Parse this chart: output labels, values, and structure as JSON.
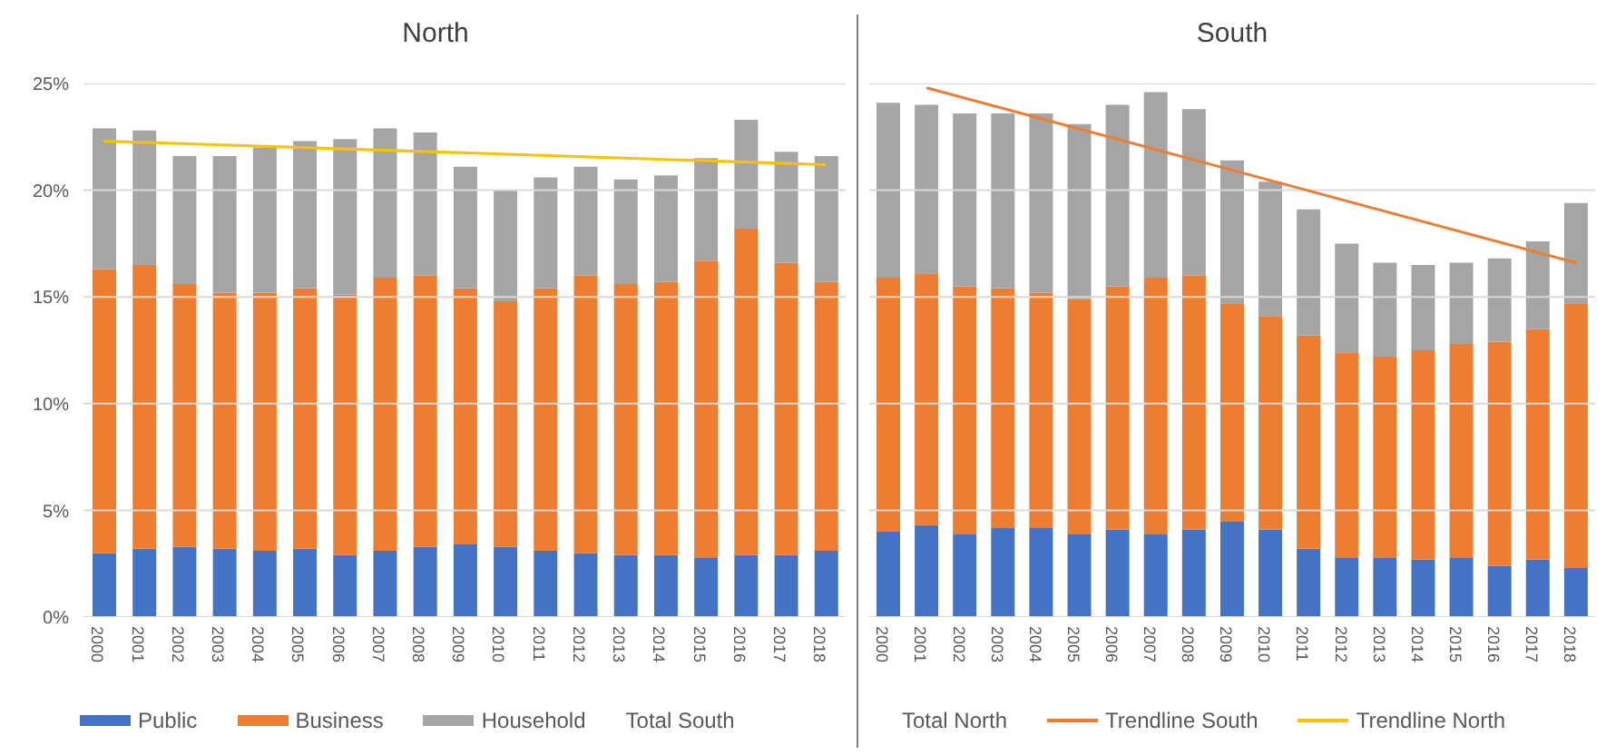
{
  "chart_data": [
    {
      "type": "bar",
      "title": "North",
      "stacked": true,
      "categories": [
        "2000",
        "2001",
        "2002",
        "2003",
        "2004",
        "2005",
        "2006",
        "2007",
        "2008",
        "2009",
        "2010",
        "2011",
        "2012",
        "2013",
        "2014",
        "2015",
        "2016",
        "2017",
        "2018"
      ],
      "series": [
        {
          "name": "Public",
          "color": "#4472c4",
          "values": [
            3.0,
            3.2,
            3.3,
            3.2,
            3.1,
            3.2,
            2.9,
            3.1,
            3.3,
            3.4,
            3.3,
            3.1,
            3.0,
            2.9,
            2.9,
            2.8,
            2.9,
            2.9,
            3.1
          ]
        },
        {
          "name": "Business",
          "color": "#ed7d31",
          "values": [
            13.3,
            13.3,
            12.3,
            12.0,
            12.1,
            12.2,
            12.2,
            12.8,
            12.7,
            12.0,
            11.5,
            12.3,
            13.0,
            12.7,
            12.8,
            13.9,
            15.3,
            13.7,
            12.6
          ]
        },
        {
          "name": "Household",
          "color": "#a5a5a5",
          "values": [
            6.6,
            6.3,
            6.0,
            6.4,
            6.8,
            6.9,
            7.3,
            7.0,
            6.7,
            5.7,
            5.2,
            5.2,
            5.1,
            4.9,
            5.0,
            4.8,
            5.1,
            5.2,
            5.9
          ]
        },
        {
          "name": "Trendline North",
          "type": "line",
          "color": "#ffc000",
          "values": [
            22.3,
            null,
            null,
            null,
            null,
            null,
            null,
            null,
            null,
            null,
            null,
            null,
            null,
            null,
            null,
            null,
            null,
            null,
            21.2
          ]
        }
      ],
      "ylim": [
        0,
        25
      ],
      "yticks": [
        {
          "value": 0,
          "label": "0%"
        },
        {
          "value": 5,
          "label": "5%"
        },
        {
          "value": 10,
          "label": "10%"
        },
        {
          "value": 15,
          "label": "15%"
        },
        {
          "value": 20,
          "label": "20%"
        },
        {
          "value": 25,
          "label": "25%"
        }
      ],
      "grid": "y",
      "legend": "bottom",
      "annotations": [
        "Total South"
      ]
    },
    {
      "type": "bar",
      "title": "South",
      "stacked": true,
      "categories": [
        "2000",
        "2001",
        "2002",
        "2003",
        "2004",
        "2005",
        "2006",
        "2007",
        "2008",
        "2009",
        "2010",
        "2011",
        "2012",
        "2013",
        "2014",
        "2015",
        "2016",
        "2017",
        "2018"
      ],
      "series": [
        {
          "color": "#4472c4",
          "values": [
            4.0,
            4.3,
            3.9,
            4.2,
            4.2,
            3.9,
            4.1,
            3.9,
            4.1,
            4.5,
            4.1,
            3.2,
            2.8,
            2.8,
            2.7,
            2.8,
            2.4,
            2.7,
            2.3
          ]
        },
        {
          "color": "#ed7d31",
          "values": [
            11.9,
            11.8,
            11.6,
            11.2,
            11.0,
            11.0,
            11.4,
            12.0,
            11.9,
            10.2,
            10.0,
            10.0,
            9.6,
            9.4,
            9.8,
            10.0,
            10.5,
            10.8,
            12.4
          ]
        },
        {
          "color": "#a5a5a5",
          "values": [
            8.2,
            7.9,
            8.1,
            8.2,
            8.4,
            8.2,
            8.5,
            8.7,
            7.8,
            6.7,
            6.3,
            5.9,
            5.1,
            4.4,
            4.0,
            3.8,
            3.9,
            4.1,
            4.7
          ]
        },
        {
          "name": "Trendline South",
          "type": "line",
          "color": "#ed7d31",
          "values": [
            null,
            24.8,
            null,
            null,
            null,
            null,
            null,
            null,
            null,
            null,
            null,
            null,
            null,
            null,
            null,
            null,
            null,
            null,
            16.6
          ]
        }
      ],
      "ylim": [
        0,
        25
      ],
      "yticks": [
        0,
        5,
        10,
        15,
        20,
        25
      ],
      "grid": "y",
      "legend": "bottom",
      "tick_labels": "x",
      "annotations": [
        "Total North"
      ]
    }
  ]
}
